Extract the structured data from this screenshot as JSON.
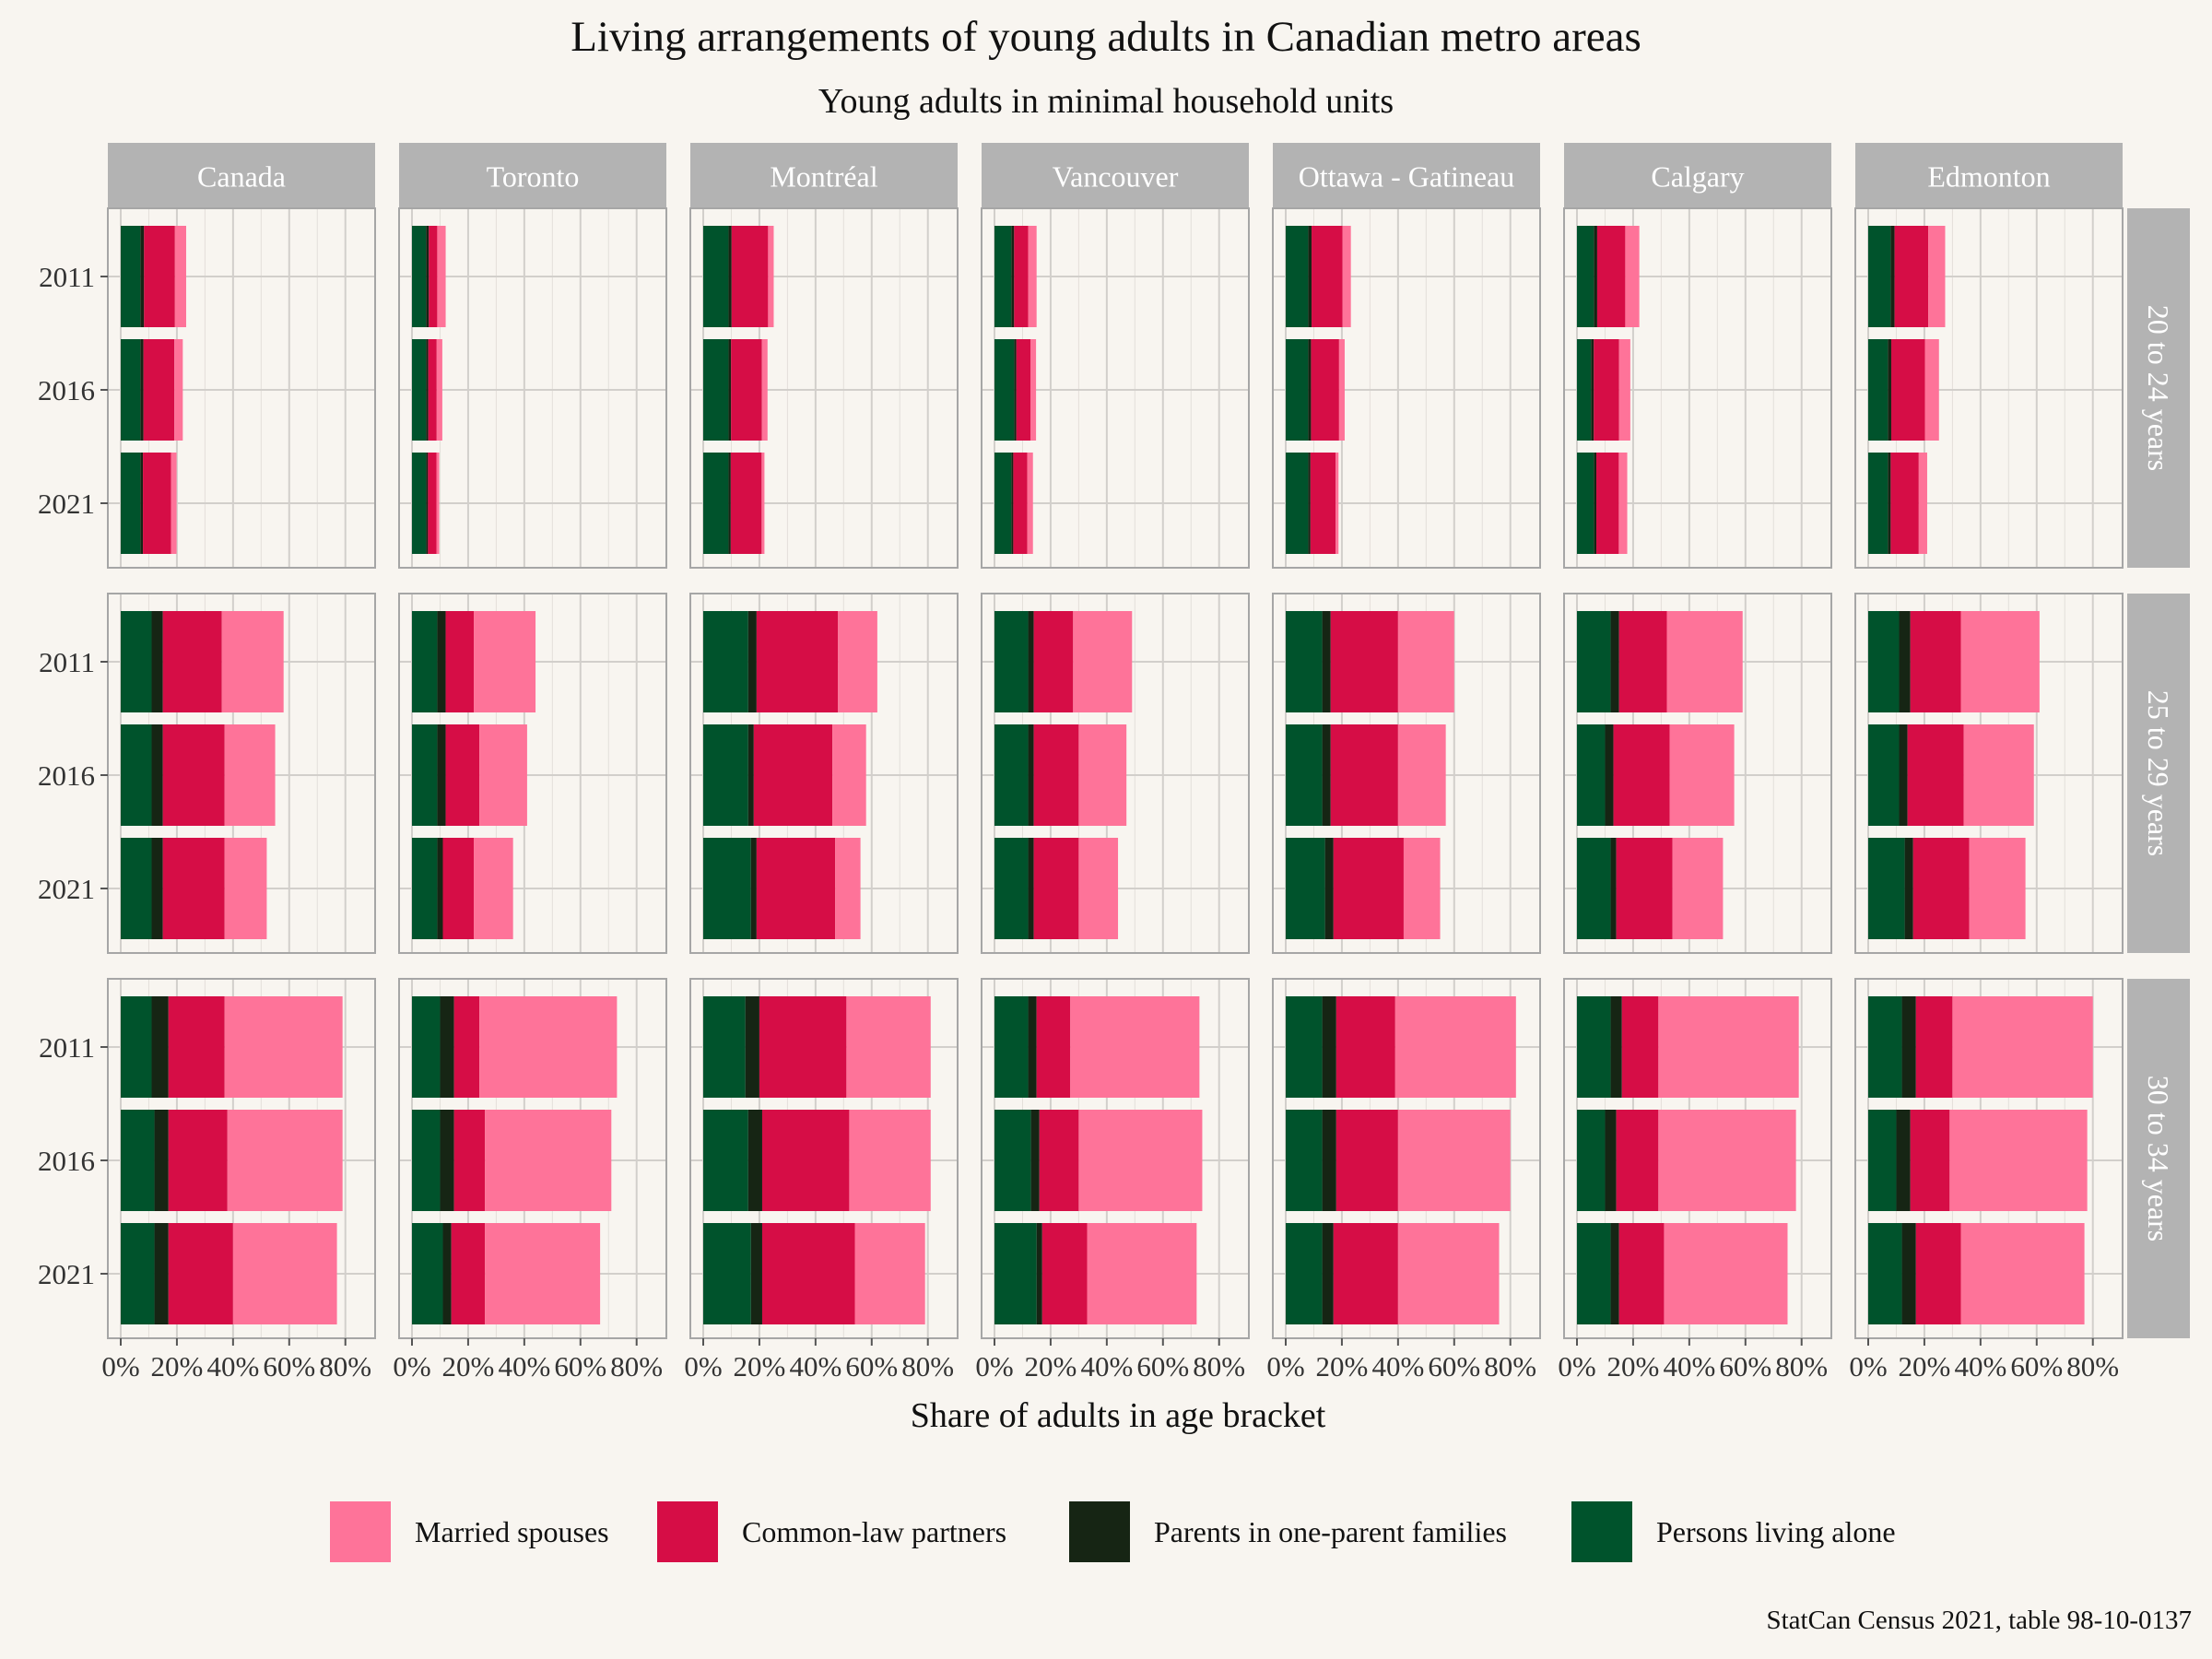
{
  "chart_data": {
    "type": "bar",
    "orientation": "horizontal",
    "stacked": true,
    "title": "Living arrangements of young adults in Canadian metro areas",
    "subtitle": "Young adults in minimal household units",
    "xlabel": "Share of adults in age bracket",
    "ylabel": "",
    "caption": "StatCan Census 2021, table 98-10-0137",
    "xlim": [
      0,
      0.86
    ],
    "x_ticks": [
      0,
      0.2,
      0.4,
      0.6,
      0.8
    ],
    "x_tick_labels": [
      "0%",
      "20%",
      "40%",
      "60%",
      "80%"
    ],
    "grid": true,
    "legend_position": "bottom",
    "legend": [
      "Married spouses",
      "Common-law partners",
      "Parents in one-parent families",
      "Persons living alone"
    ],
    "series_order": [
      "Persons living alone",
      "Parents in one-parent families",
      "Common-law partners",
      "Married spouses"
    ],
    "colors": {
      "Married spouses": "#fe7399",
      "Common-law partners": "#d60d46",
      "Parents in one-parent families": "#162514",
      "Persons living alone": "#00532c"
    },
    "years": [
      "2011",
      "2016",
      "2021"
    ],
    "regions": [
      "Canada",
      "Toronto",
      "Montréal",
      "Vancouver",
      "Ottawa - Gatineau",
      "Calgary",
      "Edmonton"
    ],
    "age_groups": [
      "20 to 24 years",
      "25 to 29 years",
      "30 to 34 years"
    ],
    "values": {
      "20 to 24 years": {
        "Canada": {
          "2011": [
            0.07,
            0.013,
            0.11,
            0.04
          ],
          "2016": [
            0.07,
            0.011,
            0.11,
            0.03
          ],
          "2021": [
            0.07,
            0.009,
            0.1,
            0.02
          ]
        },
        "Toronto": {
          "2011": [
            0.05,
            0.01,
            0.03,
            0.03
          ],
          "2016": [
            0.05,
            0.008,
            0.03,
            0.02
          ],
          "2021": [
            0.05,
            0.007,
            0.03,
            0.01
          ]
        },
        "Montréal": {
          "2011": [
            0.09,
            0.011,
            0.13,
            0.02
          ],
          "2016": [
            0.09,
            0.009,
            0.11,
            0.02
          ],
          "2021": [
            0.09,
            0.008,
            0.11,
            0.01
          ]
        },
        "Vancouver": {
          "2011": [
            0.06,
            0.01,
            0.05,
            0.03
          ],
          "2016": [
            0.07,
            0.008,
            0.05,
            0.02
          ],
          "2021": [
            0.06,
            0.007,
            0.05,
            0.02
          ]
        },
        "Ottawa - Gatineau": {
          "2011": [
            0.08,
            0.012,
            0.11,
            0.03
          ],
          "2016": [
            0.08,
            0.01,
            0.1,
            0.02
          ],
          "2021": [
            0.08,
            0.008,
            0.09,
            0.01
          ]
        },
        "Calgary": {
          "2011": [
            0.06,
            0.012,
            0.1,
            0.05
          ],
          "2016": [
            0.05,
            0.01,
            0.09,
            0.04
          ],
          "2021": [
            0.06,
            0.009,
            0.08,
            0.03
          ]
        },
        "Edmonton": {
          "2011": [
            0.08,
            0.014,
            0.12,
            0.06
          ],
          "2016": [
            0.07,
            0.012,
            0.12,
            0.05
          ],
          "2021": [
            0.07,
            0.01,
            0.1,
            0.03
          ]
        }
      },
      "25 to 29 years": {
        "Canada": {
          "2011": [
            0.11,
            0.04,
            0.21,
            0.22
          ],
          "2016": [
            0.11,
            0.04,
            0.22,
            0.18
          ],
          "2021": [
            0.11,
            0.04,
            0.22,
            0.15
          ]
        },
        "Toronto": {
          "2011": [
            0.09,
            0.03,
            0.1,
            0.22
          ],
          "2016": [
            0.09,
            0.03,
            0.12,
            0.17
          ],
          "2021": [
            0.09,
            0.02,
            0.11,
            0.14
          ]
        },
        "Montréal": {
          "2011": [
            0.16,
            0.03,
            0.29,
            0.14
          ],
          "2016": [
            0.16,
            0.02,
            0.28,
            0.12
          ],
          "2021": [
            0.17,
            0.02,
            0.28,
            0.09
          ]
        },
        "Vancouver": {
          "2011": [
            0.12,
            0.02,
            0.14,
            0.21
          ],
          "2016": [
            0.12,
            0.02,
            0.16,
            0.17
          ],
          "2021": [
            0.12,
            0.02,
            0.16,
            0.14
          ]
        },
        "Ottawa - Gatineau": {
          "2011": [
            0.13,
            0.03,
            0.24,
            0.2
          ],
          "2016": [
            0.13,
            0.03,
            0.24,
            0.17
          ],
          "2021": [
            0.14,
            0.03,
            0.25,
            0.13
          ]
        },
        "Calgary": {
          "2011": [
            0.12,
            0.03,
            0.17,
            0.27
          ],
          "2016": [
            0.1,
            0.03,
            0.2,
            0.23
          ],
          "2021": [
            0.12,
            0.02,
            0.2,
            0.18
          ]
        },
        "Edmonton": {
          "2011": [
            0.11,
            0.04,
            0.18,
            0.28
          ],
          "2016": [
            0.11,
            0.03,
            0.2,
            0.25
          ],
          "2021": [
            0.13,
            0.03,
            0.2,
            0.2
          ]
        }
      },
      "30 to 34 years": {
        "Canada": {
          "2011": [
            0.11,
            0.06,
            0.2,
            0.42
          ],
          "2016": [
            0.12,
            0.05,
            0.21,
            0.41
          ],
          "2021": [
            0.12,
            0.05,
            0.23,
            0.37
          ]
        },
        "Toronto": {
          "2011": [
            0.1,
            0.05,
            0.09,
            0.49
          ],
          "2016": [
            0.1,
            0.05,
            0.11,
            0.45
          ],
          "2021": [
            0.11,
            0.03,
            0.12,
            0.41
          ]
        },
        "Montréal": {
          "2011": [
            0.15,
            0.05,
            0.31,
            0.3
          ],
          "2016": [
            0.16,
            0.05,
            0.31,
            0.29
          ],
          "2021": [
            0.17,
            0.04,
            0.33,
            0.25
          ]
        },
        "Vancouver": {
          "2011": [
            0.12,
            0.03,
            0.12,
            0.46
          ],
          "2016": [
            0.13,
            0.03,
            0.14,
            0.44
          ],
          "2021": [
            0.15,
            0.02,
            0.16,
            0.39
          ]
        },
        "Ottawa - Gatineau": {
          "2011": [
            0.13,
            0.05,
            0.21,
            0.43
          ],
          "2016": [
            0.13,
            0.05,
            0.22,
            0.4
          ],
          "2021": [
            0.13,
            0.04,
            0.23,
            0.36
          ]
        },
        "Calgary": {
          "2011": [
            0.12,
            0.04,
            0.13,
            0.5
          ],
          "2016": [
            0.1,
            0.04,
            0.15,
            0.49
          ],
          "2021": [
            0.12,
            0.03,
            0.16,
            0.44
          ]
        },
        "Edmonton": {
          "2011": [
            0.12,
            0.05,
            0.13,
            0.5
          ],
          "2016": [
            0.1,
            0.05,
            0.14,
            0.49
          ],
          "2021": [
            0.12,
            0.05,
            0.16,
            0.44
          ]
        }
      }
    }
  }
}
